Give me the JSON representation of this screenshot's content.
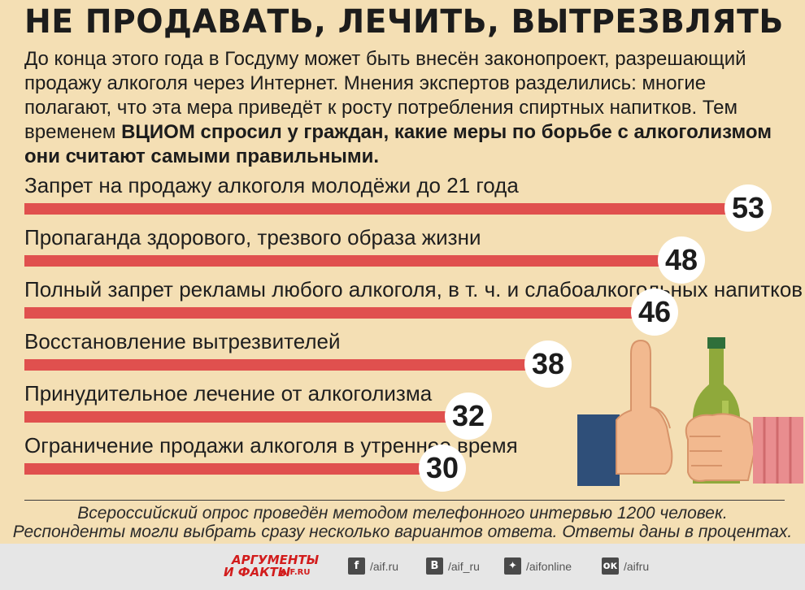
{
  "title": "НЕ ПРОДАВАТЬ, ЛЕЧИТЬ, ВЫТРЕЗВЛЯТЬ",
  "intro": {
    "text": "До конца этого года в Госдуму может быть внесён законопроект, разрешающий продажу алкоголя через Интернет. Мнения экспертов разделились: многие полагают, что эта мера приведёт к росту потребления спиртных напитков. Тем временем ",
    "bold": "ВЦИОМ спросил у граждан, какие меры по борьбе с алкоголизмом они считают самыми правильными."
  },
  "chart_data": {
    "type": "bar",
    "orientation": "horizontal",
    "categories": [
      "Запрет на продажу алкоголя молодёжи до 21 года",
      "Пропаганда здорового, трезвого образа жизни",
      "Полный запрет рекламы любого алкоголя, в т. ч. и слабоалкогольных напитков",
      "Восстановление вытрезвителей",
      "Принудительное лечение от алкоголизма",
      "Ограничение продажи алкоголя в утреннее время"
    ],
    "values": [
      53,
      48,
      46,
      38,
      32,
      30
    ],
    "value_labels": [
      "53",
      "48",
      "46",
      "38",
      "32",
      "30"
    ],
    "bar_color": "#e0504e"
  },
  "note": {
    "line1": "Всероссийский опрос проведён методом телефонного интервью 1200 человек.",
    "line2": "Респонденты могли выбрать сразу несколько вариантов ответа. Ответы даны в процентах."
  },
  "footer": {
    "logo_line1": "АРГУМЕНТЫ",
    "logo_line2": "И ФАКТЫ",
    "logo_domain": "AIF.RU",
    "social": [
      {
        "icon": "facebook-icon",
        "glyph": "f",
        "handle": "/aif.ru"
      },
      {
        "icon": "vk-icon",
        "glyph": "B",
        "handle": "/aif_ru"
      },
      {
        "icon": "twitter-icon",
        "glyph": "✦",
        "handle": "/aifonline"
      },
      {
        "icon": "odnoklassniki-icon",
        "glyph": "ок",
        "handle": "/aifru"
      }
    ]
  },
  "colors": {
    "background": "#f4dfb4",
    "bar": "#e0504e",
    "footer": "#e6e6e6",
    "brand": "#d21c1c"
  }
}
